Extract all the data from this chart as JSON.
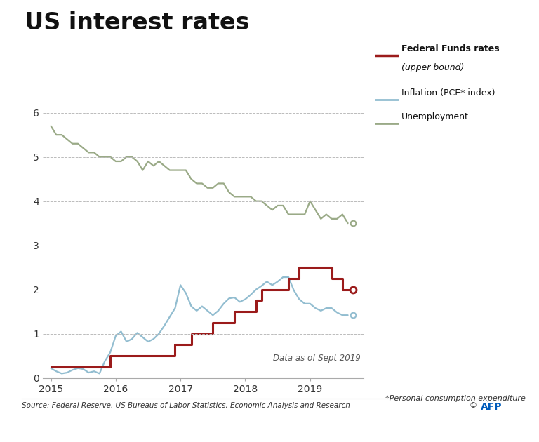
{
  "title": "US interest rates",
  "subtitle_note": "*Personal consumption expenditure",
  "source_text": "Source: Federal Reserve, US Bureaus of Labor Statistics, Economic Analysis and Research",
  "afp_text": "AFP",
  "copyright_text": "©",
  "data_note": "Data as of Sept 2019",
  "background_color": "#ffffff",
  "plot_bg_color": "#ffffff",
  "title_color": "#111111",
  "title_fontsize": 24,
  "ylim": [
    0,
    6.3
  ],
  "yticks": [
    0,
    1,
    2,
    3,
    4,
    5,
    6
  ],
  "legend": {
    "fed_label1": "Federal Funds rates",
    "fed_label2": "(upper bound)",
    "inflation_label": "Inflation (PCE* index)",
    "unemployment_label": "Unemployment"
  },
  "fed_color": "#9b1b1b",
  "inflation_color": "#92bdd0",
  "unemployment_color": "#9aaa87",
  "grid_color": "#bbbbbb",
  "afp_color": "#005bbb",
  "text_color": "#333333",
  "fed_funds": {
    "dates": [
      2015.0,
      2015.083,
      2015.167,
      2015.25,
      2015.333,
      2015.417,
      2015.5,
      2015.583,
      2015.667,
      2015.75,
      2015.833,
      2015.917,
      2016.0,
      2016.083,
      2016.167,
      2016.25,
      2016.333,
      2016.417,
      2016.5,
      2016.583,
      2016.667,
      2016.75,
      2016.833,
      2016.917,
      2017.0,
      2017.083,
      2017.167,
      2017.25,
      2017.333,
      2017.417,
      2017.5,
      2017.583,
      2017.667,
      2017.75,
      2017.833,
      2017.917,
      2018.0,
      2018.083,
      2018.167,
      2018.25,
      2018.333,
      2018.417,
      2018.5,
      2018.583,
      2018.667,
      2018.75,
      2018.833,
      2018.917,
      2019.0,
      2019.083,
      2019.167,
      2019.25,
      2019.333,
      2019.417,
      2019.5,
      2019.583,
      2019.667
    ],
    "values": [
      0.25,
      0.25,
      0.25,
      0.25,
      0.25,
      0.25,
      0.25,
      0.25,
      0.25,
      0.25,
      0.25,
      0.5,
      0.5,
      0.5,
      0.5,
      0.5,
      0.5,
      0.5,
      0.5,
      0.5,
      0.5,
      0.5,
      0.5,
      0.75,
      0.75,
      0.75,
      1.0,
      1.0,
      1.0,
      1.0,
      1.25,
      1.25,
      1.25,
      1.25,
      1.5,
      1.5,
      1.5,
      1.5,
      1.75,
      2.0,
      2.0,
      2.0,
      2.0,
      2.0,
      2.25,
      2.25,
      2.5,
      2.5,
      2.5,
      2.5,
      2.5,
      2.5,
      2.25,
      2.25,
      2.0,
      2.0,
      2.0
    ]
  },
  "inflation": {
    "dates": [
      2015.0,
      2015.083,
      2015.167,
      2015.25,
      2015.333,
      2015.417,
      2015.5,
      2015.583,
      2015.667,
      2015.75,
      2015.833,
      2015.917,
      2016.0,
      2016.083,
      2016.167,
      2016.25,
      2016.333,
      2016.417,
      2016.5,
      2016.583,
      2016.667,
      2016.75,
      2016.833,
      2016.917,
      2017.0,
      2017.083,
      2017.167,
      2017.25,
      2017.333,
      2017.417,
      2017.5,
      2017.583,
      2017.667,
      2017.75,
      2017.833,
      2017.917,
      2018.0,
      2018.083,
      2018.167,
      2018.25,
      2018.333,
      2018.417,
      2018.5,
      2018.583,
      2018.667,
      2018.75,
      2018.833,
      2018.917,
      2019.0,
      2019.083,
      2019.167,
      2019.25,
      2019.333,
      2019.417,
      2019.5,
      2019.583,
      2019.667
    ],
    "values": [
      0.22,
      0.15,
      0.1,
      0.12,
      0.18,
      0.22,
      0.2,
      0.12,
      0.15,
      0.1,
      0.38,
      0.58,
      0.95,
      1.05,
      0.82,
      0.88,
      1.02,
      0.92,
      0.82,
      0.88,
      1.0,
      1.18,
      1.38,
      1.58,
      2.1,
      1.92,
      1.62,
      1.52,
      1.62,
      1.52,
      1.42,
      1.52,
      1.68,
      1.8,
      1.82,
      1.72,
      1.78,
      1.88,
      2.0,
      2.08,
      2.18,
      2.1,
      2.18,
      2.28,
      2.28,
      1.98,
      1.78,
      1.68,
      1.68,
      1.58,
      1.52,
      1.58,
      1.58,
      1.48,
      1.42,
      1.42,
      1.42
    ]
  },
  "unemployment": {
    "dates": [
      2015.0,
      2015.083,
      2015.167,
      2015.25,
      2015.333,
      2015.417,
      2015.5,
      2015.583,
      2015.667,
      2015.75,
      2015.833,
      2015.917,
      2016.0,
      2016.083,
      2016.167,
      2016.25,
      2016.333,
      2016.417,
      2016.5,
      2016.583,
      2016.667,
      2016.75,
      2016.833,
      2016.917,
      2017.0,
      2017.083,
      2017.167,
      2017.25,
      2017.333,
      2017.417,
      2017.5,
      2017.583,
      2017.667,
      2017.75,
      2017.833,
      2017.917,
      2018.0,
      2018.083,
      2018.167,
      2018.25,
      2018.333,
      2018.417,
      2018.5,
      2018.583,
      2018.667,
      2018.75,
      2018.833,
      2018.917,
      2019.0,
      2019.083,
      2019.167,
      2019.25,
      2019.333,
      2019.417,
      2019.5,
      2019.583,
      2019.667
    ],
    "values": [
      5.7,
      5.5,
      5.5,
      5.4,
      5.3,
      5.3,
      5.2,
      5.1,
      5.1,
      5.0,
      5.0,
      5.0,
      4.9,
      4.9,
      5.0,
      5.0,
      4.9,
      4.7,
      4.9,
      4.8,
      4.9,
      4.8,
      4.7,
      4.7,
      4.7,
      4.7,
      4.5,
      4.4,
      4.4,
      4.3,
      4.3,
      4.4,
      4.4,
      4.2,
      4.1,
      4.1,
      4.1,
      4.1,
      4.0,
      4.0,
      3.9,
      3.8,
      3.9,
      3.9,
      3.7,
      3.7,
      3.7,
      3.7,
      4.0,
      3.8,
      3.6,
      3.7,
      3.6,
      3.6,
      3.7,
      3.5,
      3.5
    ]
  },
  "xlim": [
    2014.88,
    2019.83
  ],
  "xtick_positions": [
    2015,
    2016,
    2017,
    2018,
    2019
  ],
  "xtick_labels": [
    "2015",
    "2016",
    "2017",
    "2018",
    "2019"
  ]
}
